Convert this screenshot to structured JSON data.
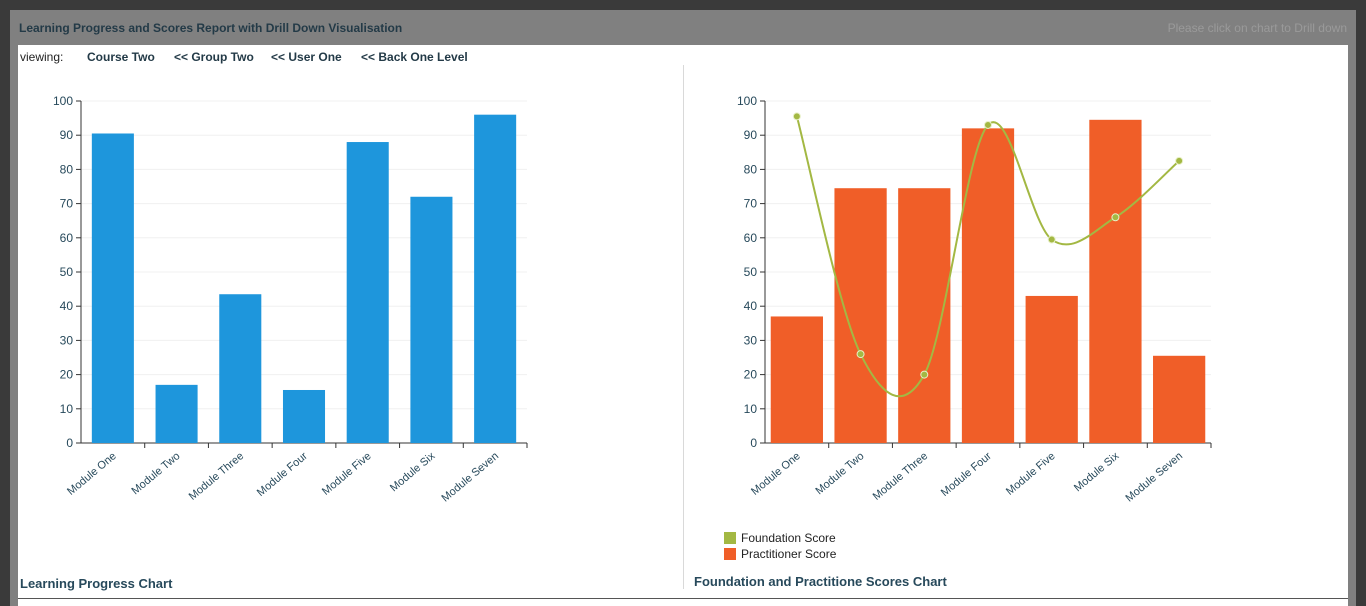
{
  "header": {
    "title": "Learning Progress and Scores Report with Drill Down Visualisation",
    "hint": "Please click on chart to Drill down"
  },
  "nav": {
    "viewing_label": "viewing:",
    "course": "Course Two",
    "group": "<< Group Two",
    "user": "<< User One",
    "back": "<< Back One Level"
  },
  "colors": {
    "progress_bar": "#1e96dc",
    "practitioner": "#f05e28",
    "foundation": "#a3b843"
  },
  "chart_data": [
    {
      "type": "bar",
      "title": "Learning Progress Chart",
      "categories": [
        "Module One",
        "Module Two",
        "Module Three",
        "Module Four",
        "Module Five",
        "Module Six",
        "Module Seven"
      ],
      "values": [
        90.5,
        17,
        43.5,
        15.5,
        88,
        72,
        96
      ],
      "ylim": [
        0,
        100
      ],
      "yticks": [
        0,
        10,
        20,
        30,
        40,
        50,
        60,
        70,
        80,
        90,
        100
      ],
      "grid": true
    },
    {
      "type": "bar",
      "title": "Foundation and Practitione Scores Chart",
      "categories": [
        "Module One",
        "Module Two",
        "Module Three",
        "Module Four",
        "Module Five",
        "Module Six",
        "Module Seven"
      ],
      "ylim": [
        0,
        100
      ],
      "yticks": [
        0,
        10,
        20,
        30,
        40,
        50,
        60,
        70,
        80,
        90,
        100
      ],
      "grid": true,
      "legend_position": "bottom-left",
      "series": [
        {
          "name": "Foundation Score",
          "type": "line",
          "values": [
            95.5,
            26,
            20,
            93,
            59.5,
            66,
            82.5
          ]
        },
        {
          "name": "Practitioner Score",
          "type": "bar",
          "values": [
            37,
            74.5,
            74.5,
            92,
            43,
            94.5,
            25.5
          ]
        }
      ]
    }
  ]
}
